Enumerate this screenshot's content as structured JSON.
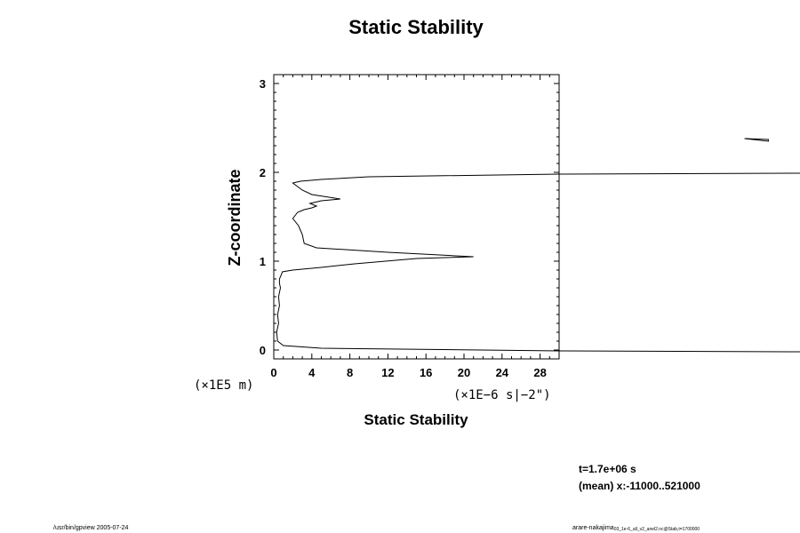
{
  "chart_data": {
    "type": "line",
    "title": "Static Stability",
    "xlabel": "Static Stability",
    "ylabel": "Z-coordinate",
    "x_unit": "(×1E−6 s|−2\")",
    "y_unit": "(×1E5 m)",
    "xlim": [
      0,
      30
    ],
    "ylim": [
      -0.1,
      3.1
    ],
    "x_ticks": [
      "0",
      "4",
      "8",
      "12",
      "16",
      "20",
      "24",
      "28"
    ],
    "y_ticks": [
      "0",
      "1",
      "2",
      "3"
    ],
    "grid": false,
    "series": [
      {
        "x": [
          56,
          30,
          5,
          1,
          0.4,
          0.3,
          0.5,
          0.4,
          0.6,
          0.5,
          0.7,
          0.6,
          0.6,
          0.8,
          0.9,
          2,
          5,
          8.5,
          15,
          21,
          12,
          4.5,
          3.2,
          3,
          2.6,
          2,
          2.5,
          3.2,
          4,
          4.5,
          3.8,
          5,
          7,
          4,
          3,
          2,
          2.8,
          5,
          10,
          30,
          56
        ],
        "y": [
          -0.02,
          -0.01,
          0.02,
          0.05,
          0.1,
          0.2,
          0.3,
          0.4,
          0.5,
          0.6,
          0.7,
          0.75,
          0.8,
          0.85,
          0.88,
          0.9,
          0.93,
          0.97,
          1.03,
          1.05,
          1.1,
          1.15,
          1.2,
          1.3,
          1.4,
          1.48,
          1.55,
          1.58,
          1.6,
          1.62,
          1.65,
          1.68,
          1.7,
          1.75,
          1.8,
          1.88,
          1.9,
          1.92,
          1.95,
          1.98,
          1.99
        ]
      },
      {
        "x": [
          49.5,
          52,
          52,
          49.5
        ],
        "y": [
          2.38,
          2.37,
          2.35,
          2.38
        ]
      }
    ]
  },
  "info": {
    "time": "t=1.7e+06 s",
    "mean": "(mean) x:-11000..521000"
  },
  "footer": {
    "left": "/usr/bin/gpview 2005-07-24",
    "right_main": "arare-nakajima",
    "right_sub": "03_1e-6_all_v2_anel2.nc@Stab,t=1700000"
  }
}
